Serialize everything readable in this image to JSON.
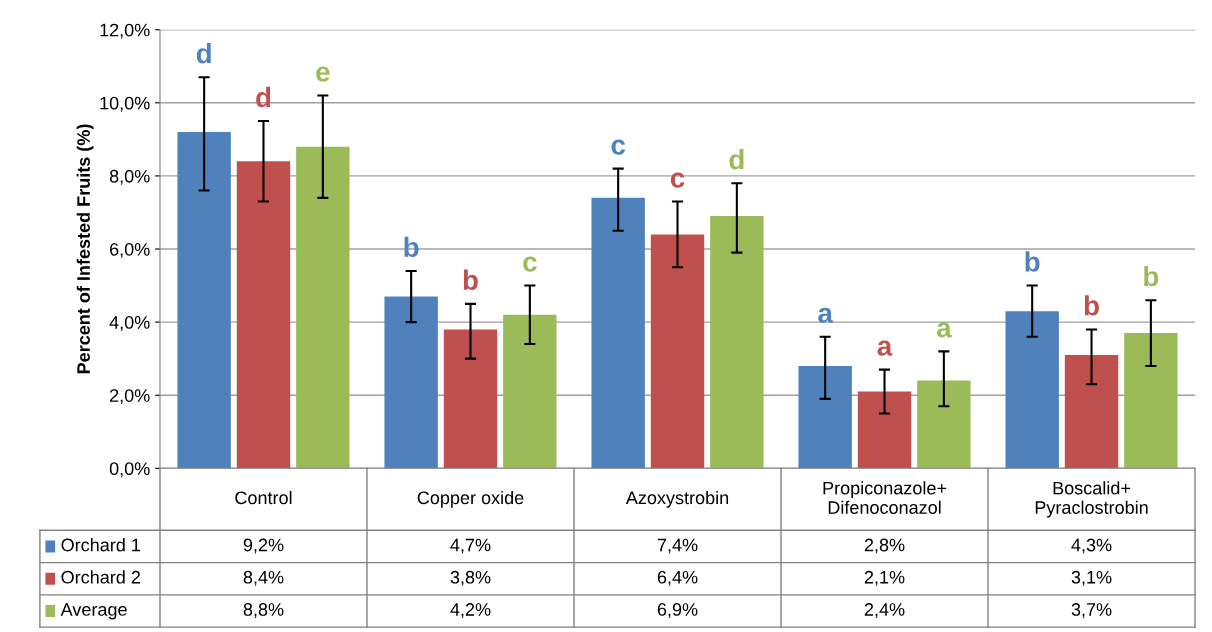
{
  "chart_data": {
    "type": "bar",
    "ylabel": "Percent of Infested Fruits (%)",
    "categories": [
      "Control",
      "Copper oxide",
      "Azoxystrobin",
      "Propiconazole+\nDifenoconazol",
      "Boscalid+\nPyraclostrobin"
    ],
    "series": [
      {
        "name": "Orchard 1",
        "color": "#4f81bd",
        "values": [
          9.2,
          4.7,
          7.4,
          2.8,
          4.3
        ],
        "value_labels": [
          "9,2%",
          "4,7%",
          "7,4%",
          "2,8%",
          "4,3%"
        ],
        "errors": [
          [
            7.6,
            10.7
          ],
          [
            4.0,
            5.4
          ],
          [
            6.5,
            8.2
          ],
          [
            1.9,
            3.6
          ],
          [
            3.6,
            5.0
          ]
        ]
      },
      {
        "name": "Orchard 2",
        "color": "#c0504d",
        "values": [
          8.4,
          3.8,
          6.4,
          2.1,
          3.1
        ],
        "value_labels": [
          "8,4%",
          "3,8%",
          "6,4%",
          "2,1%",
          "3,1%"
        ],
        "errors": [
          [
            7.3,
            9.5
          ],
          [
            3.0,
            4.5
          ],
          [
            5.5,
            7.3
          ],
          [
            1.5,
            2.7
          ],
          [
            2.3,
            3.8
          ]
        ]
      },
      {
        "name": "Average",
        "color": "#9bbb59",
        "values": [
          8.8,
          4.2,
          6.9,
          2.4,
          3.7
        ],
        "value_labels": [
          "8,8%",
          "4,2%",
          "6,9%",
          "2,4%",
          "3,7%"
        ],
        "errors": [
          [
            7.4,
            10.2
          ],
          [
            3.4,
            5.0
          ],
          [
            5.9,
            7.8
          ],
          [
            1.7,
            3.2
          ],
          [
            2.8,
            4.6
          ]
        ]
      }
    ],
    "annotations": [
      "d",
      "b",
      "c",
      "a",
      "b",
      "d",
      "b",
      "c",
      "a",
      "b",
      "e",
      "c",
      "d",
      "a",
      "b"
    ],
    "ylim": [
      0,
      12
    ],
    "yticks": [
      {
        "value": 0,
        "label": "0,0%"
      },
      {
        "value": 2,
        "label": "2,0%"
      },
      {
        "value": 4,
        "label": "4,0%"
      },
      {
        "value": 6,
        "label": "6,0%"
      },
      {
        "value": 8,
        "label": "8,0%"
      },
      {
        "value": 10,
        "label": "10,0%"
      },
      {
        "value": 12,
        "label": "12,0%"
      }
    ],
    "grid": "y",
    "legend": "bottom"
  }
}
